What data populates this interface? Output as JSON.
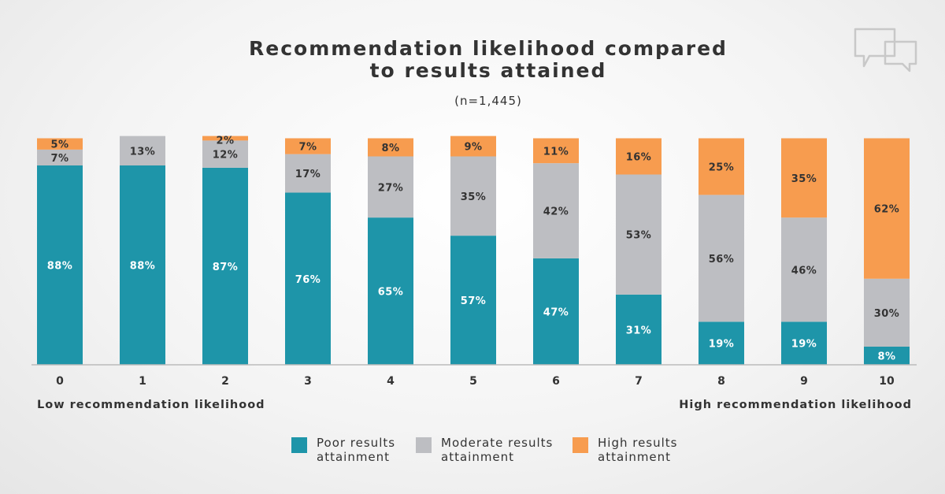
{
  "title_lines": [
    "Recommendation likelihood compared",
    "to results attained"
  ],
  "subtitle": "(n=1,445)",
  "colors": {
    "poor": "#1e95a9",
    "moderate": "#bdbec2",
    "high": "#f79c4f",
    "axis": "#bbbbbb",
    "icon": "#c8c8c8"
  },
  "icon": "speech-bubbles-icon",
  "chart_data": {
    "type": "bar",
    "stacked": true,
    "categories": [
      "0",
      "1",
      "2",
      "3",
      "4",
      "5",
      "6",
      "7",
      "8",
      "9",
      "10"
    ],
    "series": [
      {
        "key": "poor",
        "name": "Poor results attainment",
        "values": [
          88,
          88,
          87,
          76,
          65,
          57,
          47,
          31,
          19,
          19,
          8
        ],
        "labels": [
          "88%",
          "88%",
          "87%",
          "76%",
          "65%",
          "57%",
          "47%",
          "31%",
          "19%",
          "19%",
          "8%"
        ]
      },
      {
        "key": "moderate",
        "name": "Moderate results attainment",
        "values": [
          7,
          13,
          12,
          17,
          27,
          35,
          42,
          53,
          56,
          46,
          30
        ],
        "labels": [
          "7%",
          "13%",
          "12%",
          "17%",
          "27%",
          "35%",
          "42%",
          "53%",
          "56%",
          "46%",
          "30%"
        ]
      },
      {
        "key": "high",
        "name": "High results attainment",
        "values": [
          5,
          0,
          2,
          7,
          8,
          9,
          11,
          16,
          25,
          35,
          62
        ],
        "labels": [
          "5%",
          "",
          "2%",
          "7%",
          "8%",
          "9%",
          "11%",
          "16%",
          "25%",
          "35%",
          "62%"
        ]
      }
    ],
    "ylim": [
      0,
      100
    ],
    "grid": false,
    "axis_notes": {
      "left": "Low recommendation likelihood",
      "right": "High recommendation likelihood"
    },
    "legend": {
      "position": "bottom",
      "items": [
        {
          "key": "poor",
          "lines": [
            "Poor results",
            "attainment"
          ]
        },
        {
          "key": "moderate",
          "lines": [
            "Moderate results",
            "attainment"
          ]
        },
        {
          "key": "high",
          "lines": [
            "High results",
            "attainment"
          ]
        }
      ]
    }
  }
}
